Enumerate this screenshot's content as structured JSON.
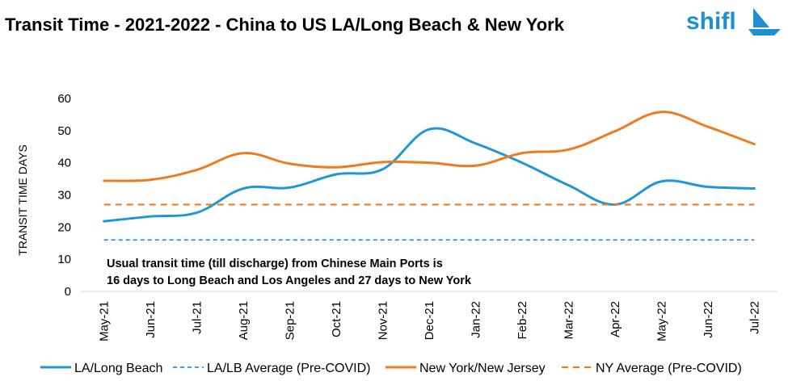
{
  "brand": {
    "name": "shifl",
    "color": "#1f8fcf"
  },
  "chart_data": {
    "type": "line",
    "title": "Transit Time - 2021-2022 - China to US LA/Long Beach & New York",
    "ylabel": "TRANSIT TIME DAYS",
    "xlabel": "",
    "ylim": [
      0,
      60
    ],
    "yticks": [
      "0",
      "10",
      "20",
      "30",
      "40",
      "50",
      "60"
    ],
    "categories": [
      "May-21",
      "Jun-21",
      "Jul-21",
      "Aug-21",
      "Sep-21",
      "Oct-21",
      "Nov-21",
      "Dec-21",
      "Jan-22",
      "Feb-22",
      "Mar-22",
      "Apr-22",
      "May-22",
      "Jun-22",
      "Jul-22"
    ],
    "series": [
      {
        "name": "LA/Long Beach",
        "style": "solid",
        "color": "#1f97d4",
        "values": [
          21.8,
          23.3,
          24.5,
          32,
          32.3,
          36.4,
          38,
          50.4,
          46,
          40,
          33,
          27,
          34.2,
          32.5,
          32
        ]
      },
      {
        "name": "LA/LB Average (Pre-COVID)",
        "style": "dashed",
        "color": "#1f97d4",
        "values": [
          16,
          16,
          16,
          16,
          16,
          16,
          16,
          16,
          16,
          16,
          16,
          16,
          16,
          16,
          16
        ]
      },
      {
        "name": "New York/New Jersey",
        "style": "solid",
        "color": "#f07a1e",
        "values": [
          34.4,
          34.7,
          37.8,
          43,
          39.7,
          38.6,
          40.2,
          40,
          39.1,
          43,
          44.1,
          49.8,
          55.8,
          51.2,
          45.8
        ]
      },
      {
        "name": "NY Average (Pre-COVID)",
        "style": "dashed",
        "color": "#f07a1e",
        "values": [
          27,
          27,
          27,
          27,
          27,
          27,
          27,
          27,
          27,
          27,
          27,
          27,
          27,
          27,
          27
        ]
      }
    ],
    "annotation": [
      "Usual transit time (till discharge) from Chinese Main Ports is",
      "16 days to Long Beach and Los Angeles and 27 days to New York"
    ],
    "grid": false,
    "legend_position": "bottom"
  }
}
